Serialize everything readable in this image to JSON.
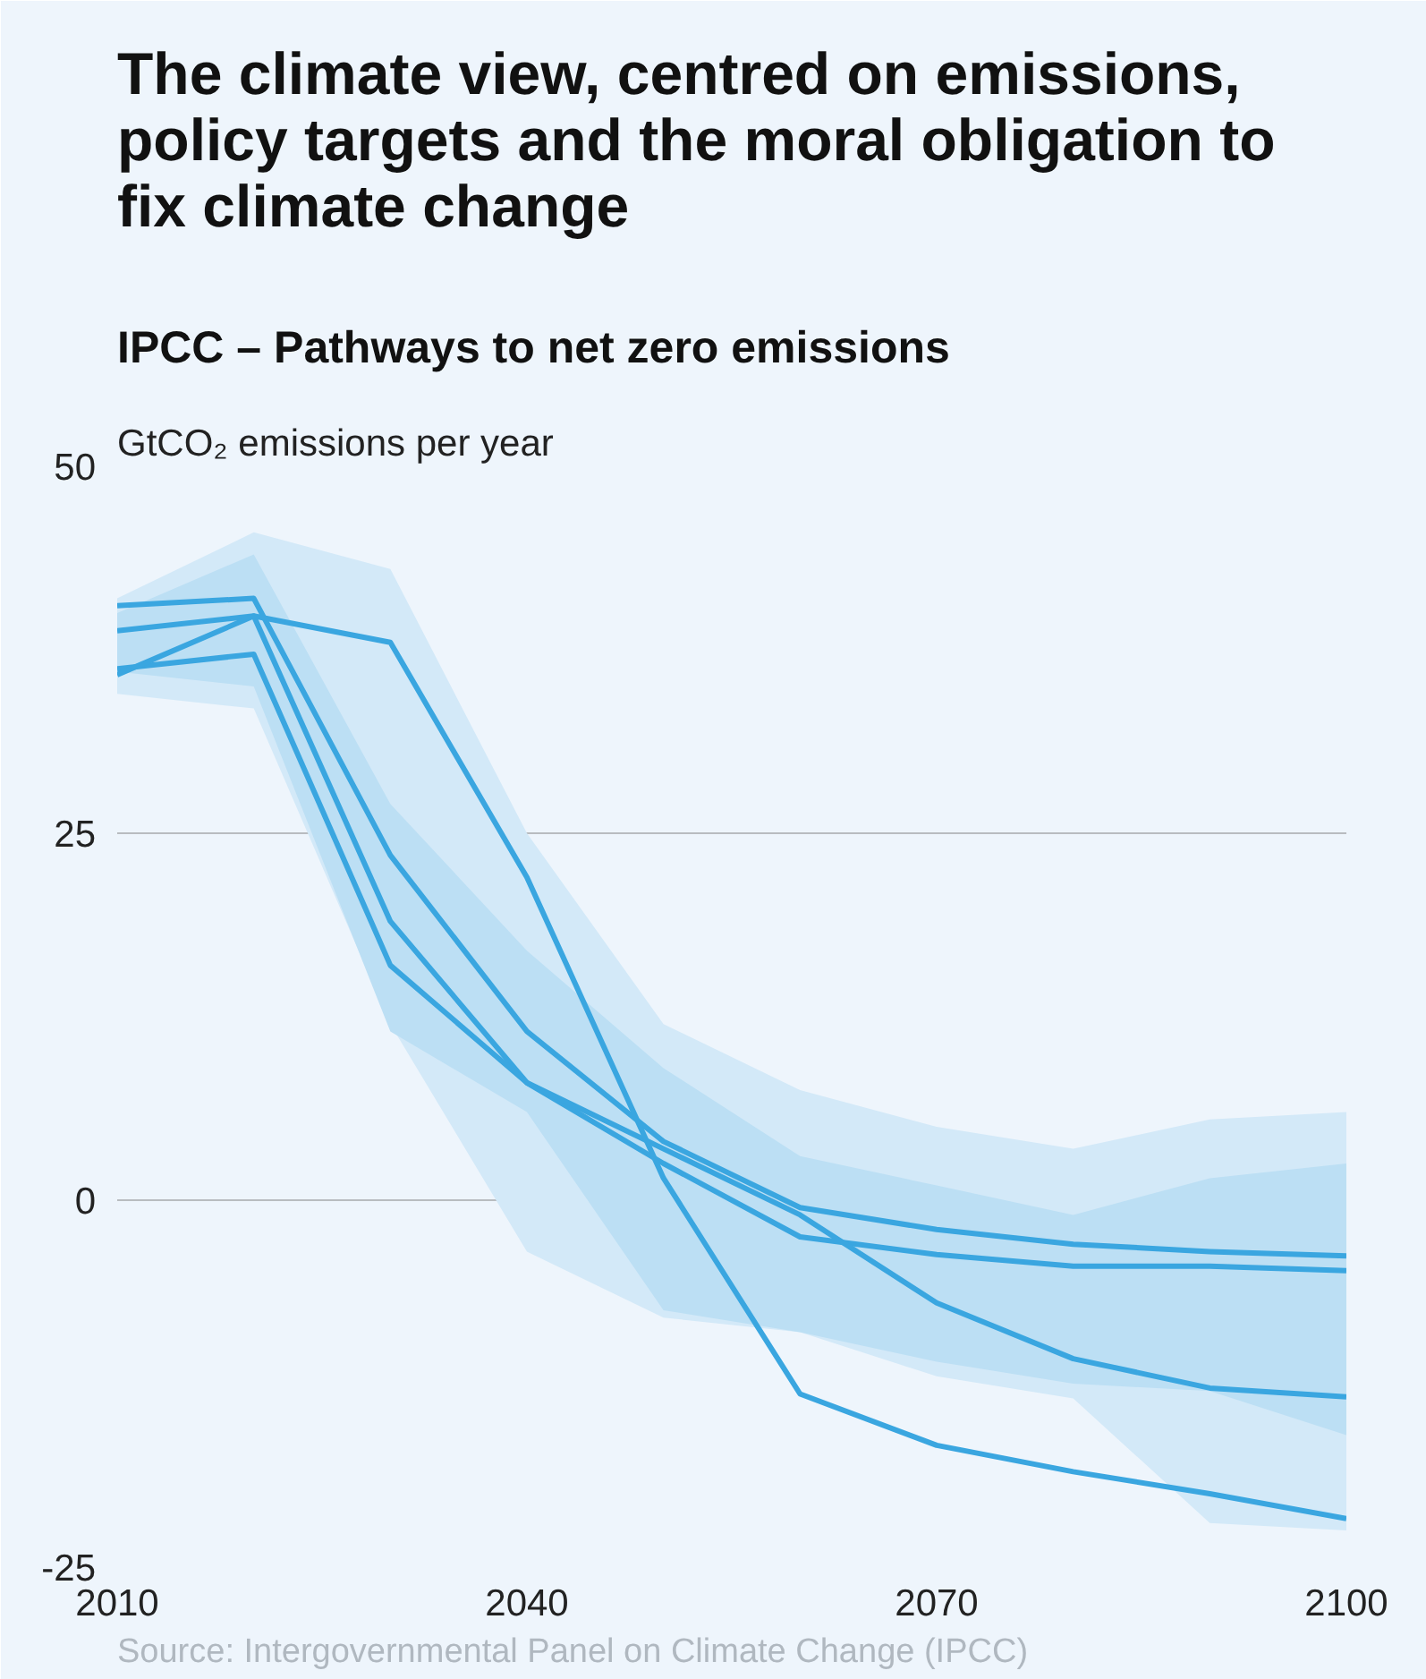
{
  "chart_data": {
    "type": "line",
    "title": "The climate view, centred on emissions, policy targets and the moral obligation to fix climate change",
    "subtitle": "IPCC – Pathways to net zero emissions",
    "ylabel": "GtCO₂ emissions per year",
    "annotations": [
      "Source: Intergovernmental Panel on Climate Change (IPCC)"
    ],
    "x": [
      2010,
      2020,
      2030,
      2040,
      2050,
      2060,
      2070,
      2080,
      2090,
      2100
    ],
    "xlim": [
      2010,
      2100
    ],
    "xticks": [
      2010,
      2040,
      2070,
      2100
    ],
    "ylim": [
      -25,
      50
    ],
    "yticks": [
      50,
      25,
      0,
      -25
    ],
    "grid": "y",
    "line_style": "solid",
    "marker": "none",
    "series": [
      {
        "type": "area",
        "color": "#d3e9f8",
        "values": [
          null,
          null,
          null,
          null,
          null,
          null,
          null,
          null,
          null,
          null
        ],
        "upper": [
          41,
          45.5,
          43,
          25,
          12,
          7.5,
          5,
          3.5,
          5.5,
          6
        ],
        "lower": [
          34.5,
          33.5,
          12,
          -3.5,
          -8,
          -9,
          -12,
          -13.5,
          -22,
          -22.5
        ]
      },
      {
        "type": "area",
        "color": "#bcdff4",
        "values": [
          null,
          null,
          null,
          null,
          null,
          null,
          null,
          null,
          null,
          null
        ],
        "upper": [
          40,
          44,
          27,
          17,
          9,
          3,
          1,
          -1,
          1.5,
          2.5
        ],
        "lower": [
          36,
          35,
          11.5,
          6,
          -7.5,
          -9,
          -11,
          -12.5,
          -13,
          -16
        ]
      },
      {
        "color": "#3aa6e0",
        "values": [
          40.5,
          41,
          23.5,
          11.5,
          4,
          -0.5,
          -2,
          -3,
          -3.5,
          -3.8
        ]
      },
      {
        "color": "#3aa6e0",
        "values": [
          38.8,
          39.8,
          19,
          8,
          2.5,
          -2.5,
          -3.7,
          -4.5,
          -4.5,
          -4.8
        ]
      },
      {
        "color": "#3aa6e0",
        "values": [
          36.2,
          37.2,
          16,
          8,
          3.5,
          -1,
          -7,
          -10.8,
          -12.8,
          -13.4
        ]
      },
      {
        "color": "#3aa6e0",
        "values": [
          35.8,
          39.8,
          38,
          22,
          1.5,
          -13.2,
          -16.7,
          -18.5,
          -20,
          -21.7
        ]
      }
    ]
  }
}
